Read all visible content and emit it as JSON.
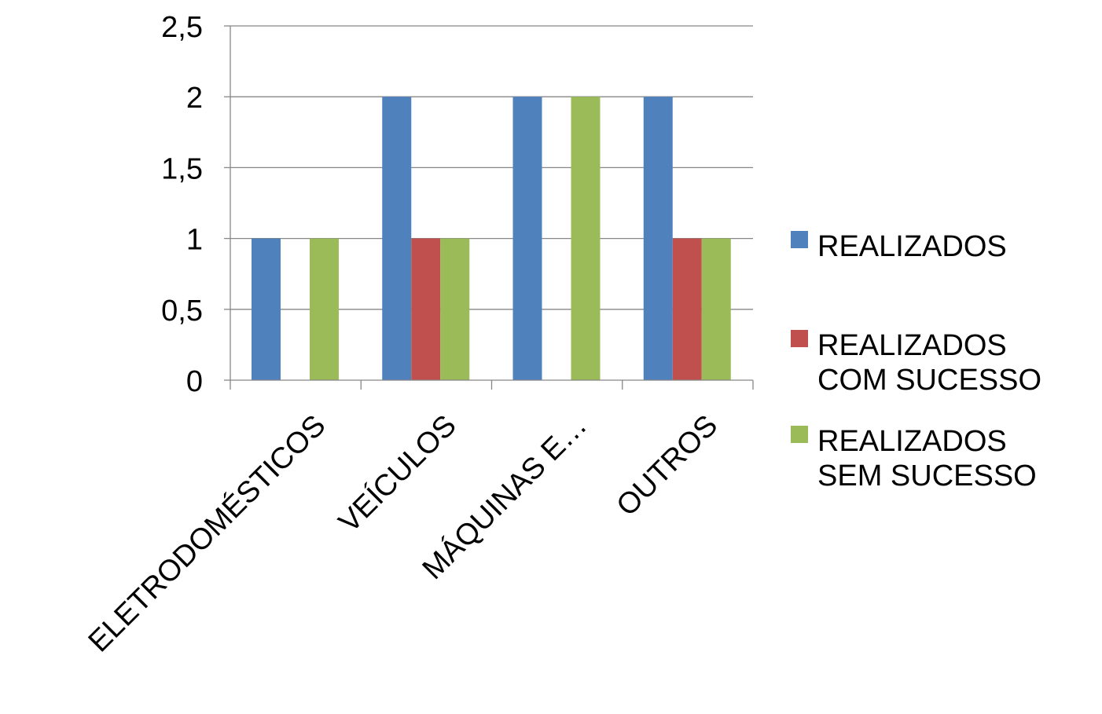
{
  "chart_data": {
    "type": "bar",
    "title": "",
    "xlabel": "",
    "ylabel": "",
    "categories": [
      "ELETRODOMÉSTICOS",
      "VEÍCULOS",
      "MÁQUINAS E…",
      "OUTROS"
    ],
    "series": [
      {
        "name": "REALIZADOS",
        "values": [
          1,
          2,
          2,
          2
        ],
        "color": "#4F81BD"
      },
      {
        "name": "REALIZADOS COM SUCESSO",
        "values": [
          0,
          1,
          0,
          1
        ],
        "color": "#C0504D"
      },
      {
        "name": "REALIZADOS SEM SUCESSO",
        "values": [
          1,
          1,
          2,
          1
        ],
        "color": "#9BBB59"
      }
    ],
    "ylim": [
      0,
      2.5
    ],
    "yticks": [
      "0",
      "0,5",
      "1",
      "1,5",
      "2",
      "2,5"
    ],
    "grid": true,
    "legend": {
      "placement": "right",
      "entries": [
        {
          "lines": [
            "REALIZADOS"
          ]
        },
        {
          "lines": [
            "REALIZADOS",
            "COM SUCESSO"
          ]
        },
        {
          "lines": [
            "REALIZADOS",
            "SEM SUCESSO"
          ]
        }
      ]
    }
  }
}
